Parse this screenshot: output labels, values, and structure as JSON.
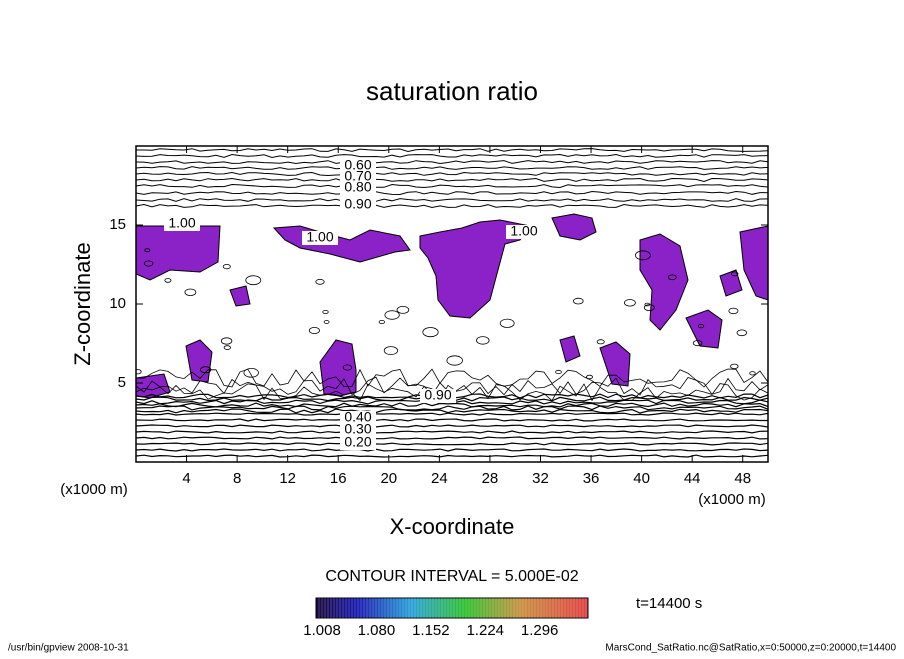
{
  "chart_data": {
    "type": "contour",
    "title": "saturation ratio",
    "xlabel": "X-coordinate",
    "ylabel": "Z-coordinate",
    "xunit": "(x1000 m)",
    "xlim": [
      0,
      50
    ],
    "ylim": [
      0,
      20
    ],
    "xticks": [
      4,
      8,
      12,
      16,
      20,
      24,
      28,
      32,
      36,
      40,
      44,
      48
    ],
    "yticks": [
      5,
      10,
      15
    ],
    "fill_color": "#8a22c8",
    "line_color": "#000000",
    "contour_labels": [
      {
        "value": 0.6,
        "label": "0.60"
      },
      {
        "value": 0.7,
        "label": "0.70"
      },
      {
        "value": 0.8,
        "label": "0.80"
      },
      {
        "value": 0.9,
        "label": "0.90"
      },
      {
        "value": 1.0,
        "label": "1.00"
      },
      {
        "value": 1.0,
        "label": "1.00"
      },
      {
        "value": 1.0,
        "label": "1.00"
      },
      {
        "value": 0.9,
        "label": "0.90"
      },
      {
        "value": 0.4,
        "label": "0.40"
      },
      {
        "value": 0.3,
        "label": "0.30"
      },
      {
        "value": 0.2,
        "label": "0.20"
      }
    ],
    "contour_interval": {
      "value": 0.05,
      "label": "CONTOUR INTERVAL = 5.000E-02"
    },
    "clim": [
      1.0,
      1.36
    ],
    "colorbar_ticks": [
      {
        "value": 1.008,
        "label": "1.008"
      },
      {
        "value": 1.08,
        "label": "1.080"
      },
      {
        "value": 1.152,
        "label": "1.152"
      },
      {
        "value": 1.224,
        "label": "1.224"
      },
      {
        "value": 1.296,
        "label": "1.296"
      }
    ],
    "time": {
      "value": 14400,
      "label": "t=14400 s"
    },
    "footer_left": "/usr/bin/gpview   2008-10-31",
    "footer_right": "MarsCond_SatRatio.nc@SatRatio,x=0:50000,z=0:20000,t=14400"
  }
}
